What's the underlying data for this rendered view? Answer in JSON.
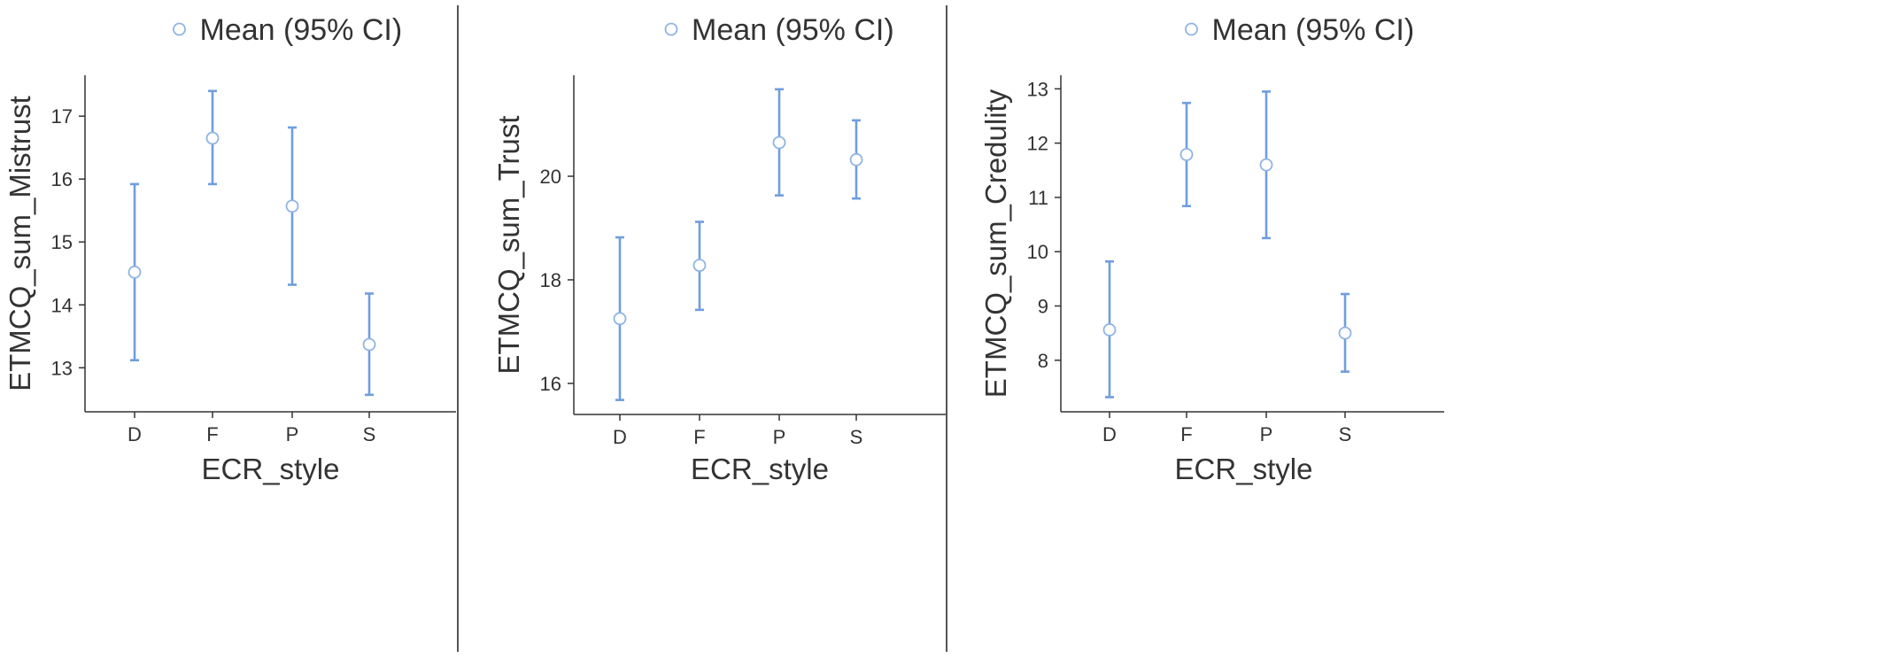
{
  "colors": {
    "marker": "#8fb4e4",
    "error_bar": "#6f9ede",
    "axis": "#333333",
    "separator": "#555555"
  },
  "legend_marker_icon": "hollow-circle",
  "chart_data": [
    {
      "type": "scatter",
      "legend": "Mean (95% CI)",
      "xlabel": "ECR_style",
      "ylabel": "ETMCQ_sum_Mistrust",
      "categories": [
        "D",
        "F",
        "P",
        "S"
      ],
      "yticks": [
        13,
        14,
        15,
        16,
        17
      ],
      "ylim": [
        12.3,
        17.65
      ],
      "grid": false,
      "series": [
        {
          "mean": [
            14.52,
            16.65,
            15.57,
            13.37
          ],
          "ci_low": [
            13.12,
            15.92,
            14.32,
            12.57
          ],
          "ci_high": [
            15.92,
            17.4,
            16.82,
            14.18
          ]
        }
      ]
    },
    {
      "type": "scatter",
      "legend": "Mean (95% CI)",
      "xlabel": "ECR_style",
      "ylabel": "ETMCQ_sum_Trust",
      "categories": [
        "D",
        "F",
        "P",
        "S"
      ],
      "yticks": [
        16,
        18,
        20
      ],
      "ylim": [
        15.4,
        21.95
      ],
      "grid": false,
      "series": [
        {
          "mean": [
            17.25,
            18.28,
            20.65,
            20.32
          ],
          "ci_low": [
            15.68,
            17.42,
            19.63,
            19.57
          ],
          "ci_high": [
            18.82,
            19.12,
            21.68,
            21.08
          ]
        }
      ]
    },
    {
      "type": "scatter",
      "legend": "Mean (95% CI)",
      "xlabel": "ECR_style",
      "ylabel": "ETMCQ_sum_Credulity",
      "categories": [
        "D",
        "F",
        "P",
        "S"
      ],
      "yticks": [
        8,
        9,
        10,
        11,
        12,
        13
      ],
      "ylim": [
        7.05,
        13.25
      ],
      "grid": false,
      "series": [
        {
          "mean": [
            8.56,
            11.79,
            11.6,
            8.5
          ],
          "ci_low": [
            7.32,
            10.84,
            10.25,
            7.79
          ],
          "ci_high": [
            9.82,
            12.74,
            12.95,
            9.22
          ]
        }
      ]
    }
  ]
}
